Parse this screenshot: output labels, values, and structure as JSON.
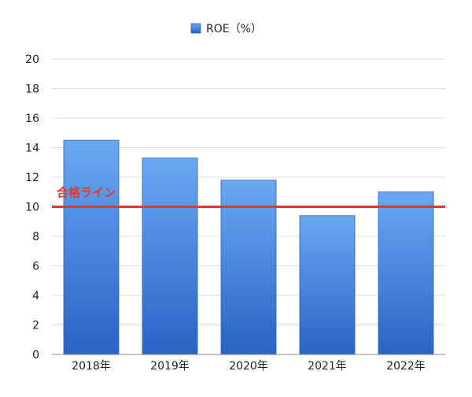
{
  "chart_data": {
    "type": "bar",
    "categories": [
      "2018年",
      "2019年",
      "2020年",
      "2021年",
      "2022年"
    ],
    "series": [
      {
        "name": "ROE（%）",
        "values": [
          14.5,
          13.3,
          11.8,
          9.4,
          11.0
        ]
      }
    ],
    "ylim": [
      0,
      20
    ],
    "yticks": [
      "0",
      "2",
      "4",
      "6",
      "8",
      "10",
      "12",
      "14",
      "16",
      "18",
      "20"
    ],
    "grid": true,
    "legend_position": "top-center",
    "reference_line": {
      "value": 10,
      "label": "合格ライン"
    },
    "colors": {
      "bar_top": "#6aa8f2",
      "bar_bottom": "#2b62c6",
      "bar_edge": "#2a5fbf",
      "reference": "#e8372a",
      "grid": "#dddddd"
    }
  }
}
